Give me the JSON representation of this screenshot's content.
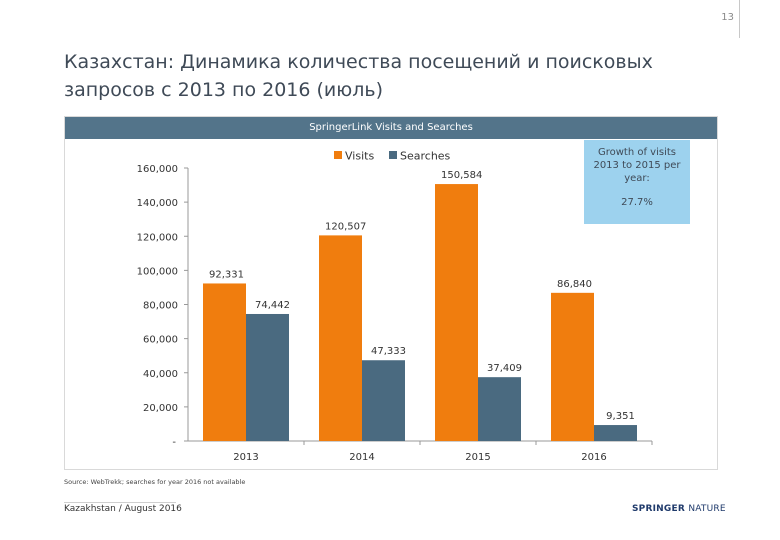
{
  "slide": {
    "number": "13",
    "title": "Казахстан: Динамика количества посещений и поисковых запросов с 2013 по 2016 (июль)",
    "source": "Source: WebTrekk; searches for year 2016 not available",
    "footer": "Kazakhstan / August 2016",
    "logo_bold": "SPRINGER",
    "logo_light": "NATURE"
  },
  "callout": {
    "text": "Growth of visits 2013 to 2015 per year:",
    "value": "27.7%"
  },
  "colors": {
    "visits": "#f07d0e",
    "searches": "#4a6a80",
    "header": "#53748a",
    "callout": "#9dd2ee"
  },
  "chart_data": {
    "type": "bar",
    "title": "SpringerLink Visits and Searches",
    "categories": [
      "2013",
      "2014",
      "2015",
      "2016"
    ],
    "series": [
      {
        "name": "Visits",
        "values": [
          92331,
          120507,
          150584,
          86840
        ],
        "labels": [
          "92,331",
          "120,507",
          "150,584",
          "86,840"
        ]
      },
      {
        "name": "Searches",
        "values": [
          74442,
          47333,
          37409,
          9351
        ],
        "labels": [
          "74,442",
          "47,333",
          "37,409",
          "9,351"
        ]
      }
    ],
    "ylim": [
      0,
      160000
    ],
    "yticks": [
      0,
      20000,
      40000,
      60000,
      80000,
      100000,
      120000,
      140000,
      160000
    ],
    "ytick_labels": [
      "-",
      "20,000",
      "40,000",
      "60,000",
      "80,000",
      "100,000",
      "120,000",
      "140,000",
      "160,000"
    ],
    "legend": "top-center",
    "grid": false
  }
}
